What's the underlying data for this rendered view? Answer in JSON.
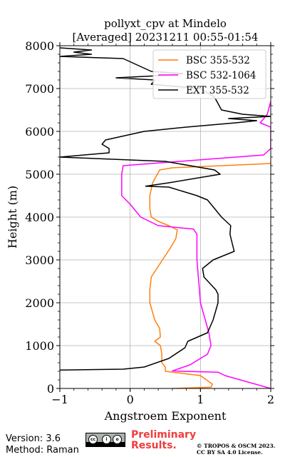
{
  "chart_data": {
    "type": "line",
    "title": "pollyxt_cpv at Mindelo",
    "subtitle": "[Averaged] 20231211 00:55-01:54",
    "xlabel": "Angstroem Exponent",
    "ylabel": "Height (m)",
    "xlim": [
      -1,
      2
    ],
    "ylim": [
      0,
      8000
    ],
    "xticks": [
      "−1",
      "0",
      "1",
      "2"
    ],
    "yticks": [
      "0",
      "1000",
      "2000",
      "3000",
      "4000",
      "5000",
      "6000",
      "7000",
      "8000"
    ],
    "grid": true,
    "legend_position": "top-right",
    "series": [
      {
        "name": "BSC 355-532",
        "color": "#ff7f0e",
        "points": [
          [
            0.6,
            0
          ],
          [
            1.15,
            30
          ],
          [
            1.17,
            100
          ],
          [
            1.0,
            300
          ],
          [
            0.5,
            400
          ],
          [
            0.5,
            500
          ],
          [
            0.45,
            600
          ],
          [
            0.45,
            800
          ],
          [
            0.43,
            1000
          ],
          [
            0.35,
            1100
          ],
          [
            0.43,
            1200
          ],
          [
            0.42,
            1400
          ],
          [
            0.35,
            1600
          ],
          [
            0.28,
            2000
          ],
          [
            0.28,
            2300
          ],
          [
            0.3,
            2600
          ],
          [
            0.42,
            2900
          ],
          [
            0.58,
            3300
          ],
          [
            0.65,
            3500
          ],
          [
            0.67,
            3700
          ],
          [
            0.55,
            3800
          ],
          [
            0.4,
            3900
          ],
          [
            0.3,
            4000
          ],
          [
            0.28,
            4200
          ],
          [
            0.28,
            4500
          ],
          [
            0.32,
            4800
          ],
          [
            0.42,
            5100
          ],
          [
            0.6,
            5150
          ],
          [
            2.0,
            5250
          ],
          [
            2.0,
            5300
          ]
        ]
      },
      {
        "name": "BSC 532-1064",
        "color": "#ff00ff",
        "points": [
          [
            2.0,
            0
          ],
          [
            1.35,
            300
          ],
          [
            1.25,
            380
          ],
          [
            0.75,
            400
          ],
          [
            0.6,
            410
          ],
          [
            0.85,
            550
          ],
          [
            1.1,
            800
          ],
          [
            1.15,
            1000
          ],
          [
            1.12,
            1300
          ],
          [
            1.0,
            2000
          ],
          [
            0.98,
            2400
          ],
          [
            0.95,
            3000
          ],
          [
            0.95,
            3600
          ],
          [
            0.9,
            3720
          ],
          [
            0.4,
            3800
          ],
          [
            0.15,
            4000
          ],
          [
            0.0,
            4300
          ],
          [
            -0.12,
            4500
          ],
          [
            -0.12,
            5000
          ],
          [
            -0.1,
            5200
          ],
          [
            0.3,
            5250
          ],
          [
            1.9,
            5450
          ],
          [
            2.0,
            5600
          ],
          [
            2.0,
            6100
          ],
          [
            1.85,
            6200
          ],
          [
            1.95,
            6400
          ],
          [
            2.0,
            6700
          ]
        ]
      },
      {
        "name": "EXT 355-532",
        "color": "#000000",
        "points": [
          [
            -1.0,
            430
          ],
          [
            -0.1,
            450
          ],
          [
            0.2,
            500
          ],
          [
            0.55,
            700
          ],
          [
            0.78,
            950
          ],
          [
            0.82,
            1100
          ],
          [
            1.1,
            1300
          ],
          [
            1.18,
            1600
          ],
          [
            1.25,
            2000
          ],
          [
            1.25,
            2200
          ],
          [
            1.22,
            2300
          ],
          [
            1.05,
            2600
          ],
          [
            1.03,
            2800
          ],
          [
            1.18,
            3000
          ],
          [
            1.48,
            3200
          ],
          [
            1.45,
            3400
          ],
          [
            1.42,
            3600
          ],
          [
            1.43,
            3800
          ],
          [
            1.3,
            4000
          ],
          [
            1.2,
            4200
          ],
          [
            1.1,
            4400
          ],
          [
            0.95,
            4500
          ],
          [
            0.55,
            4700
          ],
          [
            0.22,
            4720
          ],
          [
            0.55,
            4800
          ],
          [
            1.28,
            5000
          ],
          [
            1.2,
            5100
          ],
          [
            0.5,
            5300
          ],
          [
            -1.0,
            5400
          ],
          [
            -0.3,
            5500
          ],
          [
            -0.3,
            5600
          ],
          [
            -0.4,
            5700
          ],
          [
            -0.35,
            5800
          ],
          [
            0.2,
            6000
          ],
          [
            0.8,
            6100
          ],
          [
            1.5,
            6200
          ],
          [
            1.8,
            6250
          ],
          [
            1.4,
            6300
          ],
          [
            2.0,
            6350
          ],
          [
            1.6,
            6400
          ],
          [
            1.3,
            6500
          ],
          [
            1.2,
            6800
          ],
          [
            1.0,
            7000
          ],
          [
            0.3,
            7100
          ],
          [
            0.35,
            7200
          ],
          [
            -0.2,
            7250
          ],
          [
            0.4,
            7300
          ],
          [
            0.75,
            7350
          ],
          [
            0.3,
            7400
          ],
          [
            -0.1,
            7700
          ],
          [
            -1.0,
            7750
          ],
          [
            -0.55,
            7800
          ],
          [
            -0.8,
            7850
          ],
          [
            -0.55,
            7900
          ],
          [
            -1.0,
            7950
          ]
        ]
      }
    ]
  },
  "footer": {
    "version": "Version: 3.6",
    "method": "Method: Raman",
    "preliminary_line1": "Preliminary",
    "preliminary_line2": "Results.",
    "copyright_line1": "© TROPOS & OSCM 2023.",
    "copyright_line2": "CC BY SA 4.0 License."
  }
}
